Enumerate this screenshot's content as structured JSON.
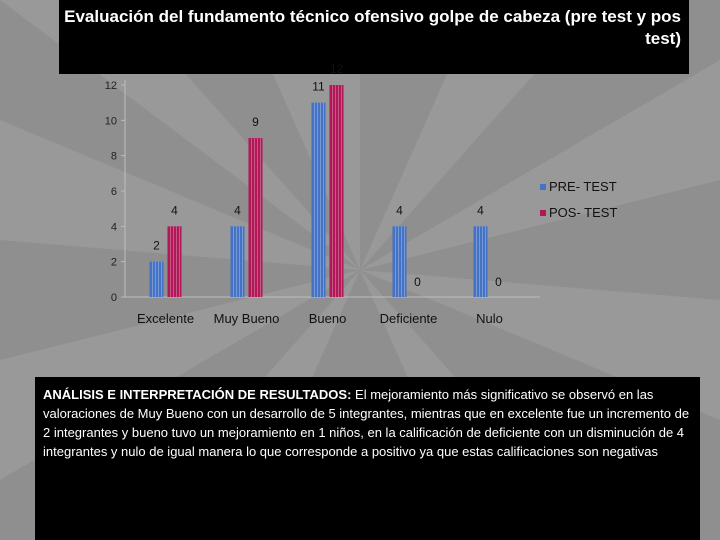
{
  "slide": {
    "title": "Evaluación del fundamento técnico ofensivo golpe de cabeza  (pre test y pos test)",
    "analysis_heading": "ANÁLISIS E INTERPRETACIÓN DE RESULTADOS:",
    "analysis_body": " El mejoramiento más significativo se observó en las valoraciones de  Muy  Bueno con un desarrollo de 5 integrantes, mientras que en excelente fue un incremento de 2 integrantes y bueno tuvo un mejoramiento en 1 niños, en la calificación de  deficiente con un disminución de 4 integrantes y nulo de igual manera lo que corresponde a positivo ya que estas calificaciones son negativas"
  },
  "colors": {
    "pre": "#4472c4",
    "pos": "#b01858",
    "background": "#8f8f8f",
    "panel": "#000000"
  },
  "chart_data": {
    "type": "bar",
    "categories": [
      "Excelente",
      "Muy Bueno",
      "Bueno",
      "Deficiente",
      "Nulo"
    ],
    "series": [
      {
        "name": "PRE- TEST",
        "values": [
          2,
          4,
          11,
          4,
          4
        ]
      },
      {
        "name": "POS- TEST",
        "values": [
          4,
          9,
          12,
          0,
          0
        ]
      }
    ],
    "yticks": [
      0,
      2,
      4,
      6,
      8,
      10,
      12
    ],
    "ylim": [
      0,
      12
    ],
    "legend": "right",
    "grid": false,
    "title": "",
    "xlabel": "",
    "ylabel": ""
  }
}
